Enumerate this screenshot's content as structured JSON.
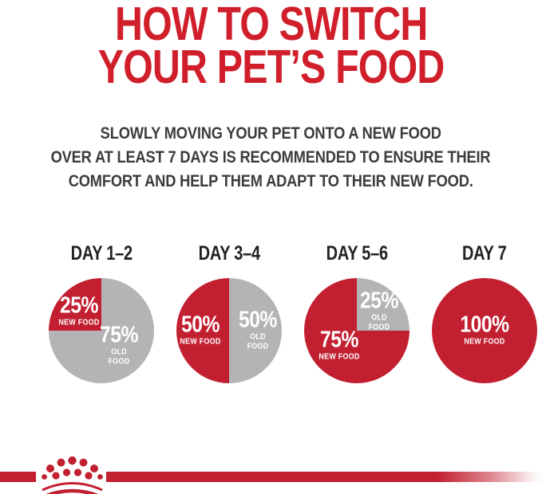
{
  "header": {
    "title_line1": "HOW TO SWITCH",
    "title_line2": "YOUR PET’S FOOD",
    "subtitle_lines": [
      "SLOWLY MOVING YOUR PET ONTO A NEW FOOD",
      "OVER AT LEAST 7 DAYS IS RECOMMENDED TO ENSURE THEIR",
      "COMFORT AND HELP THEM ADAPT TO THEIR NEW FOOD."
    ]
  },
  "colors": {
    "title_red": "#d01f2b",
    "brand_red": "#c22031",
    "old_food_gray": "#b4b3b6",
    "heading_text": "#232021",
    "subtitle_text": "#3c3c3e",
    "label_white": "#ffffff"
  },
  "chart_data": [
    {
      "type": "pie",
      "title": "DAY 1–2",
      "legend": "none",
      "labels_on_slices": true,
      "slices": [
        {
          "label": "NEW FOOD",
          "pct_label": "25%",
          "value": 25,
          "color": "#c22031",
          "start_deg": 270,
          "end_deg": 360
        },
        {
          "label": "OLD FOOD",
          "pct_label": "75%",
          "value": 75,
          "color": "#b4b3b6",
          "start_deg": 0,
          "end_deg": 270
        }
      ]
    },
    {
      "type": "pie",
      "title": "DAY 3–4",
      "legend": "none",
      "labels_on_slices": true,
      "slices": [
        {
          "label": "NEW FOOD",
          "pct_label": "50%",
          "value": 50,
          "color": "#c22031",
          "start_deg": 180,
          "end_deg": 360
        },
        {
          "label": "OLD FOOD",
          "pct_label": "50%",
          "value": 50,
          "color": "#b4b3b6",
          "start_deg": 0,
          "end_deg": 180
        }
      ]
    },
    {
      "type": "pie",
      "title": "DAY 5–6",
      "legend": "none",
      "labels_on_slices": true,
      "slices": [
        {
          "label": "NEW FOOD",
          "pct_label": "75%",
          "value": 75,
          "color": "#c22031",
          "start_deg": 90,
          "end_deg": 360
        },
        {
          "label": "OLD FOOD",
          "pct_label": "25%",
          "value": 25,
          "color": "#b4b3b6",
          "start_deg": 0,
          "end_deg": 90
        }
      ]
    },
    {
      "type": "pie",
      "title": "DAY 7",
      "legend": "none",
      "labels_on_slices": true,
      "slices": [
        {
          "label": "NEW FOOD",
          "pct_label": "100%",
          "value": 100,
          "color": "#c22031",
          "start_deg": 0,
          "end_deg": 360
        }
      ]
    }
  ],
  "footer": {
    "brand_logo_icon": "royal-canin-crown-logo"
  }
}
